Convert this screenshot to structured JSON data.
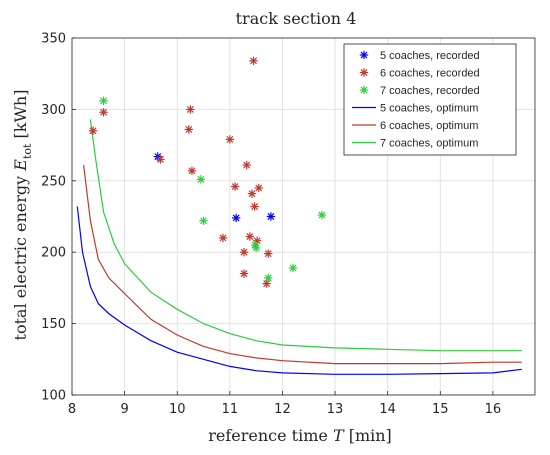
{
  "chart_data": {
    "type": "scatter",
    "title": "track section 4",
    "xlabel_main": "reference time ",
    "xlabel_var": "T",
    "xlabel_unit": " [min]",
    "ylabel_main": "total electric energy ",
    "ylabel_var": "E",
    "ylabel_sub": "tot",
    "ylabel_unit": " [kWh]",
    "xlim": [
      8,
      16.8
    ],
    "ylim": [
      100,
      350
    ],
    "xticks": [
      8,
      9,
      10,
      11,
      12,
      13,
      14,
      15,
      16
    ],
    "yticks": [
      100,
      150,
      200,
      250,
      300,
      350
    ],
    "grid": true,
    "legend_position": "top-right",
    "scatter_series": [
      {
        "name": "5 coaches, recorded",
        "color": "#0000ff",
        "marker": "asterisk",
        "points": [
          [
            9.63,
            267
          ],
          [
            11.12,
            224
          ],
          [
            11.78,
            225
          ]
        ]
      },
      {
        "name": "6 coaches, recorded",
        "color": "#c0392b",
        "marker": "asterisk",
        "points": [
          [
            8.4,
            285
          ],
          [
            8.6,
            298
          ],
          [
            9.68,
            265
          ],
          [
            10.22,
            286
          ],
          [
            10.25,
            300
          ],
          [
            10.28,
            257
          ],
          [
            10.87,
            210
          ],
          [
            11.0,
            279
          ],
          [
            11.1,
            246
          ],
          [
            11.27,
            200
          ],
          [
            11.27,
            185
          ],
          [
            11.32,
            261
          ],
          [
            11.38,
            211
          ],
          [
            11.42,
            241
          ],
          [
            11.45,
            334
          ],
          [
            11.47,
            232
          ],
          [
            11.52,
            208
          ],
          [
            11.55,
            245
          ],
          [
            11.73,
            199
          ],
          [
            11.7,
            178
          ]
        ]
      },
      {
        "name": "7 coaches, recorded",
        "color": "#2ecc40",
        "marker": "asterisk",
        "points": [
          [
            8.6,
            306
          ],
          [
            10.45,
            251
          ],
          [
            10.5,
            222
          ],
          [
            11.48,
            205
          ],
          [
            11.5,
            203
          ],
          [
            11.73,
            182
          ],
          [
            12.2,
            189
          ],
          [
            12.75,
            226
          ]
        ]
      }
    ],
    "line_series": [
      {
        "name": "5 coaches, optimum",
        "color": "#0000ff",
        "x": [
          8.1,
          8.2,
          8.35,
          8.5,
          8.7,
          9.0,
          9.5,
          10.0,
          10.5,
          11.0,
          11.5,
          12.0,
          13.0,
          14.0,
          15.0,
          16.0,
          16.55
        ],
        "y": [
          232,
          200,
          176,
          164,
          157,
          149,
          138,
          130,
          125,
          120,
          117,
          115.5,
          114.5,
          114.5,
          115,
          115.5,
          118
        ]
      },
      {
        "name": "6 coaches, optimum",
        "color": "#c0392b",
        "x": [
          8.22,
          8.35,
          8.5,
          8.7,
          9.0,
          9.5,
          10.0,
          10.5,
          11.0,
          11.5,
          12.0,
          13.0,
          14.0,
          15.0,
          16.0,
          16.55
        ],
        "y": [
          261,
          222,
          195,
          182,
          171,
          153,
          142,
          134,
          129,
          126,
          124,
          122,
          122,
          122,
          123,
          123
        ]
      },
      {
        "name": "7 coaches, optimum",
        "color": "#2ecc40",
        "x": [
          8.35,
          8.45,
          8.6,
          8.8,
          9.0,
          9.5,
          10.0,
          10.5,
          11.0,
          11.5,
          12.0,
          13.0,
          14.0,
          15.0,
          16.0,
          16.55
        ],
        "y": [
          293,
          265,
          228,
          206,
          192,
          172,
          160,
          150,
          143,
          138,
          135,
          133,
          132,
          131,
          131,
          131
        ]
      }
    ]
  }
}
